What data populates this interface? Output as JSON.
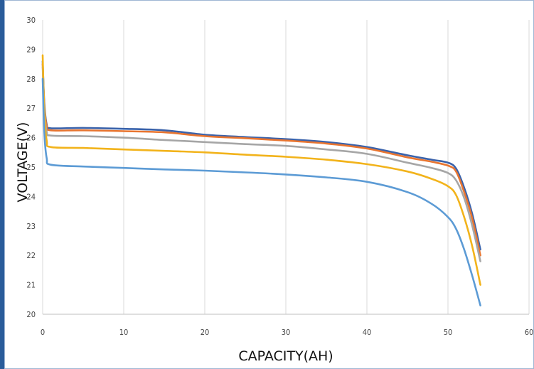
{
  "chart_data": {
    "type": "line",
    "xlabel": "CAPACITY(AH)",
    "ylabel": "VOLTAGE(V)",
    "xlim": [
      0,
      60
    ],
    "ylim": [
      20,
      30
    ],
    "xticks": [
      0,
      10,
      20,
      30,
      40,
      50,
      60
    ],
    "yticks": [
      20,
      21,
      22,
      23,
      24,
      25,
      26,
      27,
      28,
      29,
      30
    ],
    "grid": "vertical",
    "legend": "none",
    "series": [
      {
        "color": "#3a62aa",
        "x": [
          0,
          0.2,
          0.5,
          1,
          5,
          10,
          15,
          20,
          25,
          30,
          35,
          40,
          45,
          48,
          50,
          51,
          52,
          53,
          54
        ],
        "y": [
          28.6,
          27.2,
          26.45,
          26.32,
          26.33,
          26.3,
          26.25,
          26.1,
          26.02,
          25.95,
          25.85,
          25.68,
          25.4,
          25.25,
          25.15,
          24.95,
          24.3,
          23.4,
          22.2
        ]
      },
      {
        "color": "#e87530",
        "x": [
          0,
          0.2,
          0.5,
          1,
          5,
          10,
          15,
          20,
          25,
          30,
          35,
          40,
          45,
          48,
          50,
          51,
          52,
          53,
          54
        ],
        "y": [
          28.5,
          27.1,
          26.4,
          26.25,
          26.25,
          26.22,
          26.18,
          26.05,
          25.98,
          25.9,
          25.8,
          25.63,
          25.33,
          25.18,
          25.05,
          24.85,
          24.15,
          23.25,
          22.0
        ]
      },
      {
        "color": "#a6a6a6",
        "x": [
          0,
          0.2,
          0.5,
          1,
          5,
          10,
          15,
          20,
          25,
          30,
          35,
          40,
          45,
          48,
          50,
          51,
          52,
          53,
          54
        ],
        "y": [
          28.4,
          27.0,
          26.2,
          26.07,
          26.05,
          26.0,
          25.92,
          25.85,
          25.78,
          25.72,
          25.6,
          25.45,
          25.15,
          24.97,
          24.8,
          24.55,
          23.95,
          23.0,
          21.8
        ]
      },
      {
        "color": "#f2b31b",
        "x": [
          0,
          0.2,
          0.5,
          1,
          5,
          10,
          15,
          20,
          25,
          30,
          35,
          40,
          45,
          48,
          50,
          51,
          52,
          53,
          54
        ],
        "y": [
          28.8,
          26.9,
          25.9,
          25.68,
          25.65,
          25.6,
          25.55,
          25.5,
          25.42,
          25.35,
          25.25,
          25.1,
          24.85,
          24.6,
          24.35,
          24.05,
          23.3,
          22.3,
          21.0
        ]
      },
      {
        "color": "#5c9bd5",
        "x": [
          0,
          0.2,
          0.5,
          1,
          5,
          10,
          15,
          20,
          25,
          30,
          35,
          40,
          45,
          48,
          50,
          51,
          52,
          53,
          54
        ],
        "y": [
          28.0,
          26.2,
          25.3,
          25.08,
          25.02,
          24.97,
          24.92,
          24.88,
          24.82,
          24.75,
          24.65,
          24.5,
          24.15,
          23.75,
          23.3,
          22.9,
          22.2,
          21.3,
          20.3
        ]
      }
    ]
  }
}
